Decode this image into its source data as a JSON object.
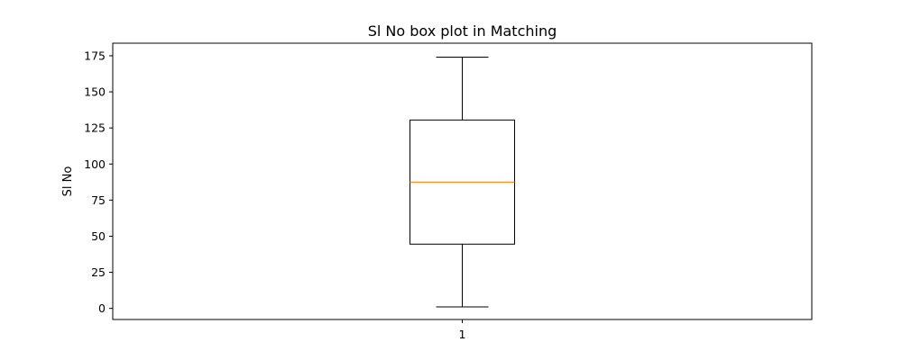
{
  "chart_data": {
    "type": "box",
    "title": "Sl No box plot in Matching",
    "xlabel": "",
    "ylabel": "Sl No",
    "categories": [
      "1"
    ],
    "ylim": [
      -7.7,
      183.7
    ],
    "yticks": [
      0,
      25,
      50,
      75,
      100,
      125,
      150,
      175
    ],
    "boxes": [
      {
        "category": "1",
        "whisker_low": 1,
        "q1": 44.5,
        "median": 87.5,
        "q3": 130.5,
        "whisker_high": 174
      }
    ],
    "grid": false,
    "colors": {
      "box": "#000000",
      "median": "#ff7f0e"
    }
  }
}
